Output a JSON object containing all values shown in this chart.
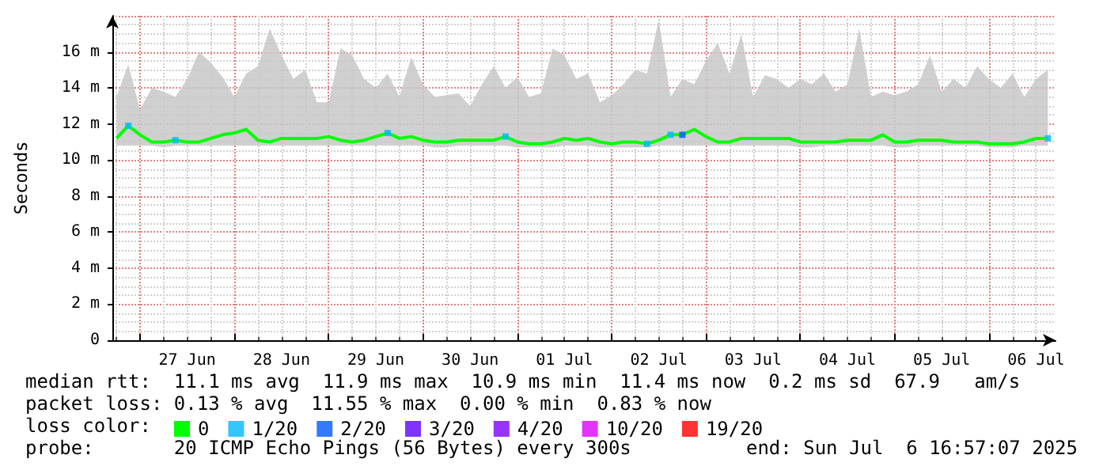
{
  "chart_data": {
    "type": "line",
    "ylabel": "Seconds",
    "legend_title": "loss color:",
    "legend": "bottom",
    "grid": true,
    "xlim": [
      "2025-06-26T16:57",
      "2025-07-06T16:57"
    ],
    "xticks": [
      {
        "value": "2025-06-27T12:00",
        "label": "27 Jun"
      },
      {
        "value": "2025-06-28T12:00",
        "label": "28 Jun"
      },
      {
        "value": "2025-06-29T12:00",
        "label": "29 Jun"
      },
      {
        "value": "2025-06-30T12:00",
        "label": "30 Jun"
      },
      {
        "value": "2025-07-01T12:00",
        "label": "01 Jul"
      },
      {
        "value": "2025-07-02T12:00",
        "label": "02 Jul"
      },
      {
        "value": "2025-07-03T12:00",
        "label": "03 Jul"
      },
      {
        "value": "2025-07-04T12:00",
        "label": "04 Jul"
      },
      {
        "value": "2025-07-05T12:00",
        "label": "05 Jul"
      },
      {
        "value": "2025-07-06T12:00",
        "label": "06 Jul"
      }
    ],
    "ylim": [
      0,
      18
    ],
    "yticks": [
      0,
      {
        "value": 2,
        "label": "2 m"
      },
      {
        "value": 4,
        "label": "4 m"
      },
      {
        "value": 6,
        "label": "6 m"
      },
      {
        "value": 8,
        "label": "8 m"
      },
      {
        "value": 10,
        "label": "10 m"
      },
      {
        "value": 12,
        "label": "12 m"
      },
      {
        "value": 14,
        "label": "14 m"
      },
      {
        "value": 16,
        "label": "16 m"
      }
    ],
    "x": [
      "2025-06-26T18:00",
      "2025-06-26T21:00",
      "2025-06-27T00:00",
      "2025-06-27T03:00",
      "2025-06-27T06:00",
      "2025-06-27T09:00",
      "2025-06-27T12:00",
      "2025-06-27T15:00",
      "2025-06-27T18:00",
      "2025-06-27T21:00",
      "2025-06-28T00:00",
      "2025-06-28T03:00",
      "2025-06-28T06:00",
      "2025-06-28T09:00",
      "2025-06-28T12:00",
      "2025-06-28T15:00",
      "2025-06-28T18:00",
      "2025-06-28T21:00",
      "2025-06-29T00:00",
      "2025-06-29T03:00",
      "2025-06-29T06:00",
      "2025-06-29T09:00",
      "2025-06-29T12:00",
      "2025-06-29T15:00",
      "2025-06-29T18:00",
      "2025-06-29T21:00",
      "2025-06-30T00:00",
      "2025-06-30T03:00",
      "2025-06-30T06:00",
      "2025-06-30T09:00",
      "2025-06-30T12:00",
      "2025-06-30T15:00",
      "2025-06-30T18:00",
      "2025-06-30T21:00",
      "2025-07-01T00:00",
      "2025-07-01T03:00",
      "2025-07-01T06:00",
      "2025-07-01T09:00",
      "2025-07-01T12:00",
      "2025-07-01T15:00",
      "2025-07-01T18:00",
      "2025-07-01T21:00",
      "2025-07-02T00:00",
      "2025-07-02T03:00",
      "2025-07-02T06:00",
      "2025-07-02T09:00",
      "2025-07-02T12:00",
      "2025-07-02T15:00",
      "2025-07-02T18:00",
      "2025-07-02T21:00",
      "2025-07-03T00:00",
      "2025-07-03T03:00",
      "2025-07-03T06:00",
      "2025-07-03T09:00",
      "2025-07-03T12:00",
      "2025-07-03T15:00",
      "2025-07-03T18:00",
      "2025-07-03T21:00",
      "2025-07-04T00:00",
      "2025-07-04T03:00",
      "2025-07-04T06:00",
      "2025-07-04T09:00",
      "2025-07-04T12:00",
      "2025-07-04T15:00",
      "2025-07-04T18:00",
      "2025-07-04T21:00",
      "2025-07-05T00:00",
      "2025-07-05T03:00",
      "2025-07-05T06:00",
      "2025-07-05T09:00",
      "2025-07-05T12:00",
      "2025-07-05T15:00",
      "2025-07-05T18:00",
      "2025-07-05T21:00",
      "2025-07-06T00:00",
      "2025-07-06T03:00",
      "2025-07-06T06:00",
      "2025-07-06T09:00",
      "2025-07-06T12:00",
      "2025-07-06T15:00"
    ],
    "series": [
      {
        "name": "0",
        "color": "#00ff00",
        "values": [
          11.2,
          11.9,
          11.4,
          11.0,
          11.0,
          11.1,
          11.0,
          11.0,
          11.2,
          11.4,
          11.5,
          11.7,
          11.1,
          11.0,
          11.2,
          11.2,
          11.2,
          11.2,
          11.3,
          11.1,
          11.0,
          11.1,
          11.3,
          11.5,
          11.2,
          11.3,
          11.1,
          11.0,
          11.0,
          11.1,
          11.1,
          11.1,
          11.1,
          11.3,
          11.0,
          10.9,
          10.9,
          11.0,
          11.2,
          11.1,
          11.2,
          11.0,
          10.9,
          11.0,
          11.0,
          10.9,
          11.1,
          11.4,
          11.4,
          11.7,
          11.3,
          11.0,
          11.0,
          11.2,
          11.2,
          11.2,
          11.2,
          11.2,
          11.0,
          11.0,
          11.0,
          11.0,
          11.1,
          11.1,
          11.1,
          11.4,
          11.0,
          11.0,
          11.1,
          11.1,
          11.1,
          11.0,
          11.0,
          11.0,
          10.9,
          10.9,
          10.9,
          11.0,
          11.2,
          11.2
        ],
        "lower": [
          10.8,
          10.8,
          10.8,
          10.8,
          10.7,
          10.8,
          10.8,
          10.8,
          10.8,
          10.8,
          10.8,
          10.8,
          10.8,
          10.8,
          10.8,
          10.8,
          10.8,
          10.8,
          10.8,
          10.8,
          10.8,
          10.8,
          10.8,
          10.8,
          10.8,
          10.8,
          10.8,
          10.7,
          10.7,
          10.8,
          10.8,
          10.8,
          10.8,
          10.8,
          10.7,
          10.7,
          10.7,
          10.7,
          10.8,
          10.8,
          10.8,
          10.7,
          10.7,
          10.7,
          10.7,
          10.7,
          10.8,
          10.8,
          10.8,
          10.8,
          10.8,
          10.8,
          10.8,
          10.8,
          10.8,
          10.8,
          10.8,
          10.8,
          10.7,
          10.7,
          10.8,
          10.8,
          10.8,
          10.8,
          10.8,
          10.8,
          10.7,
          10.7,
          10.8,
          10.8,
          10.8,
          10.8,
          10.8,
          10.8,
          10.7,
          10.7,
          10.7,
          10.8,
          10.8,
          10.8
        ],
        "upper": [
          13.5,
          15.3,
          12.8,
          14.0,
          13.8,
          13.5,
          14.5,
          16.0,
          15.4,
          14.6,
          13.5,
          14.8,
          15.2,
          17.3,
          15.8,
          14.5,
          15.0,
          13.2,
          13.2,
          16.2,
          15.8,
          14.5,
          14.0,
          14.8,
          13.5,
          15.7,
          14.2,
          13.5,
          13.6,
          13.7,
          13.0,
          14.2,
          15.2,
          14.0,
          14.6,
          13.5,
          13.7,
          16.2,
          15.8,
          14.5,
          14.8,
          13.2,
          13.6,
          14.2,
          15.0,
          14.8,
          17.8,
          13.5,
          14.5,
          14.2,
          15.5,
          16.5,
          14.8,
          17.0,
          13.5,
          14.7,
          14.5,
          14.0,
          14.5,
          14.2,
          14.8,
          13.8,
          14.2,
          17.3,
          13.5,
          13.8,
          13.6,
          13.8,
          14.2,
          15.8,
          13.8,
          14.5,
          14.0,
          15.2,
          14.5,
          14.0,
          14.8,
          13.5,
          14.5,
          15.0
        ]
      },
      {
        "name": "1/20",
        "type": "scatter",
        "marker": "square",
        "color": "#00b8ff",
        "x": [
          "2025-06-26T21:00",
          "2025-06-27T09:00",
          "2025-06-29T15:00",
          "2025-06-30T21:00",
          "2025-07-02T09:00",
          "2025-07-02T15:00",
          "2025-07-06T15:00"
        ],
        "values": [
          11.9,
          11.1,
          11.5,
          11.3,
          10.9,
          11.4,
          11.2
        ]
      },
      {
        "name": "2/20",
        "type": "scatter",
        "marker": "square",
        "color": "#0059ff",
        "x": [
          "2025-07-02T18:00"
        ],
        "values": [
          11.4
        ]
      },
      {
        "name": "3/20",
        "type": "scatter",
        "color": "#5e00ff",
        "values": [
          null,
          null,
          null,
          null,
          null,
          null,
          null,
          null,
          null,
          null,
          null,
          null,
          null,
          null,
          null,
          null,
          null,
          null,
          null,
          null,
          null,
          null,
          null,
          null,
          null,
          null,
          null,
          null,
          null,
          null,
          null,
          null,
          null,
          null,
          null,
          null,
          null,
          null,
          null,
          null,
          null,
          null,
          null,
          null,
          null,
          null,
          null,
          null,
          null,
          null,
          null,
          null,
          null,
          null,
          null,
          null,
          null,
          null,
          null,
          null,
          null,
          null,
          null,
          null,
          null,
          null,
          null,
          null,
          null,
          null,
          null,
          null,
          null,
          null,
          null,
          null,
          null,
          null,
          null,
          null
        ]
      },
      {
        "name": "4/20",
        "type": "scatter",
        "color": "#7e00ff",
        "values": [
          null,
          null,
          null,
          null,
          null,
          null,
          null,
          null,
          null,
          null,
          null,
          null,
          null,
          null,
          null,
          null,
          null,
          null,
          null,
          null,
          null,
          null,
          null,
          null,
          null,
          null,
          null,
          null,
          null,
          null,
          null,
          null,
          null,
          null,
          null,
          null,
          null,
          null,
          null,
          null,
          null,
          null,
          null,
          null,
          null,
          null,
          null,
          null,
          null,
          null,
          null,
          null,
          null,
          null,
          null,
          null,
          null,
          null,
          null,
          null,
          null,
          null,
          null,
          null,
          null,
          null,
          null,
          null,
          null,
          null,
          null,
          null,
          null,
          null,
          null,
          null,
          null,
          null,
          null,
          null
        ]
      },
      {
        "name": "10/20",
        "type": "scatter",
        "color": "#dd00ff",
        "values": [
          null,
          null,
          null,
          null,
          null,
          null,
          null,
          null,
          null,
          null,
          null,
          null,
          null,
          null,
          null,
          null,
          null,
          null,
          null,
          null,
          null,
          null,
          null,
          null,
          null,
          null,
          null,
          null,
          null,
          null,
          null,
          null,
          null,
          null,
          null,
          null,
          null,
          null,
          null,
          null,
          null,
          null,
          null,
          null,
          null,
          null,
          null,
          null,
          null,
          null,
          null,
          null,
          null,
          null,
          null,
          null,
          null,
          null,
          null,
          null,
          null,
          null,
          null,
          null,
          null,
          null,
          null,
          null,
          null,
          null,
          null,
          null,
          null,
          null,
          null,
          null,
          null,
          null,
          null,
          null
        ]
      },
      {
        "name": "19/20",
        "type": "scatter",
        "color": "#ff0000",
        "values": [
          null,
          null,
          null,
          null,
          null,
          null,
          null,
          null,
          null,
          null,
          null,
          null,
          null,
          null,
          null,
          null,
          null,
          null,
          null,
          null,
          null,
          null,
          null,
          null,
          null,
          null,
          null,
          null,
          null,
          null,
          null,
          null,
          null,
          null,
          null,
          null,
          null,
          null,
          null,
          null,
          null,
          null,
          null,
          null,
          null,
          null,
          null,
          null,
          null,
          null,
          null,
          null,
          null,
          null,
          null,
          null,
          null,
          null,
          null,
          null,
          null,
          null,
          null,
          null,
          null,
          null,
          null,
          null,
          null,
          null,
          null,
          null,
          null,
          null,
          null,
          null,
          null,
          null,
          null,
          null
        ]
      }
    ],
    "annotations": [
      "median rtt:  11.1 ms avg  11.9 ms max  10.9 ms min  11.4 ms now  0.2 ms sd  67.9   am/s",
      "packet loss: 0.13 % avg  11.55 % max  0.00 % min  0.83 % now",
      "probe:       20 ICMP Echo Pings (56 Bytes) every 300s",
      "end: Sun Jul  6 16:57:07 2025"
    ]
  }
}
